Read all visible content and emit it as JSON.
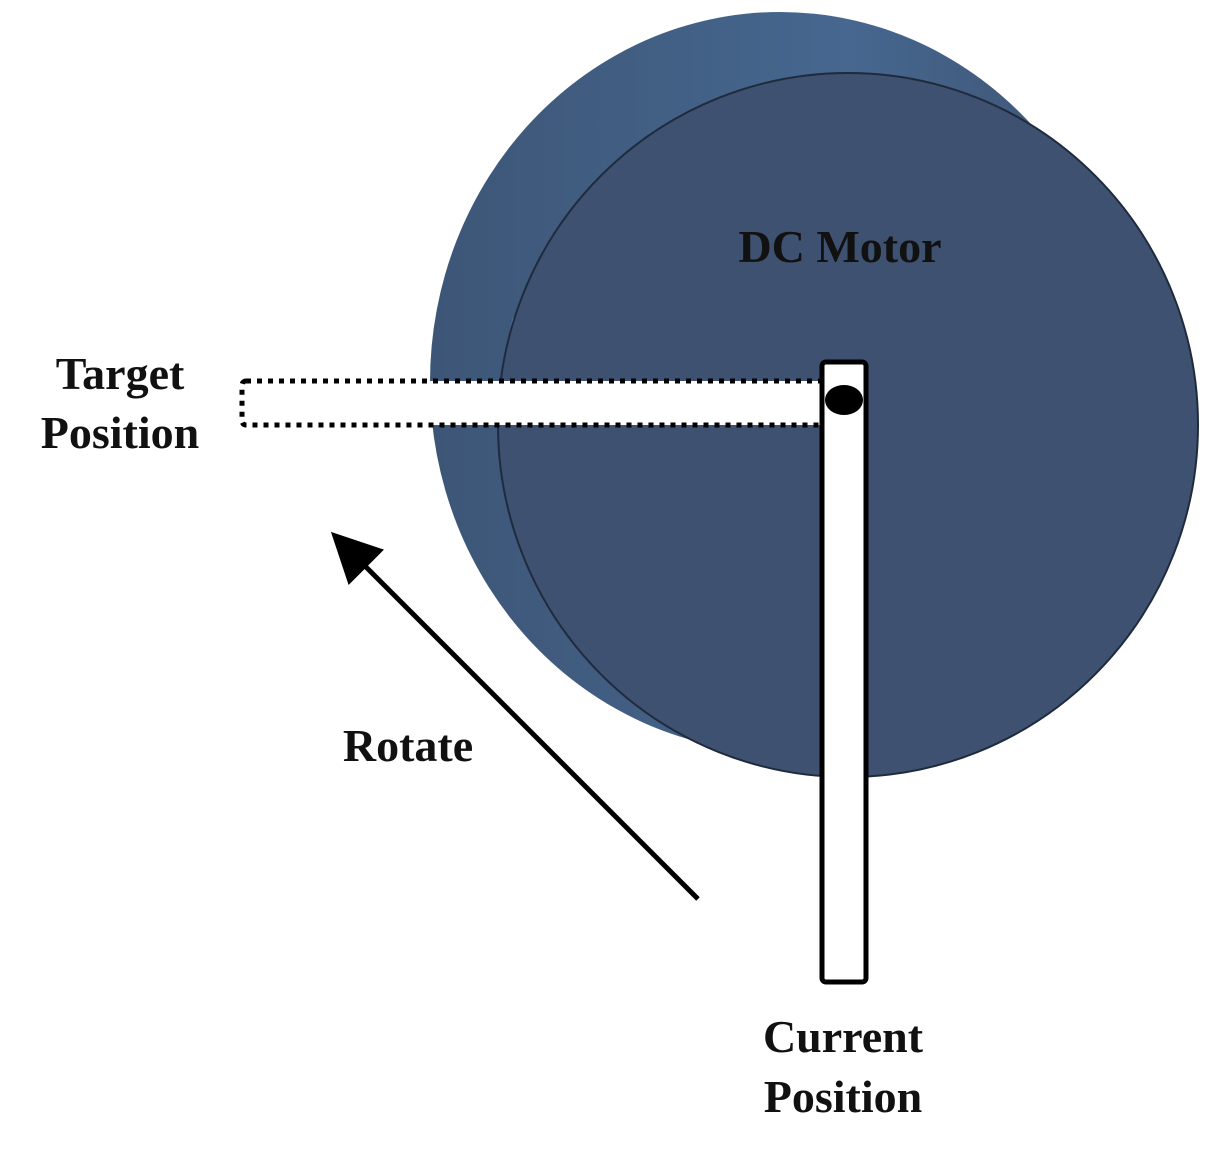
{
  "labels": {
    "motor": "DC Motor",
    "target_line1": "Target",
    "target_line2": "Position",
    "rotate": "Rotate",
    "current_line1": "Current",
    "current_line2": "Position"
  },
  "colors": {
    "motor_face": "#3e5170",
    "motor_side": "#44648c",
    "motor_edge": "#1f2b3d",
    "arm_fill": "#ffffff",
    "arm_stroke": "#000000",
    "text": "#111111"
  },
  "icons": {
    "shaft": "pivot-dot",
    "rotation": "arrow-up-left"
  }
}
